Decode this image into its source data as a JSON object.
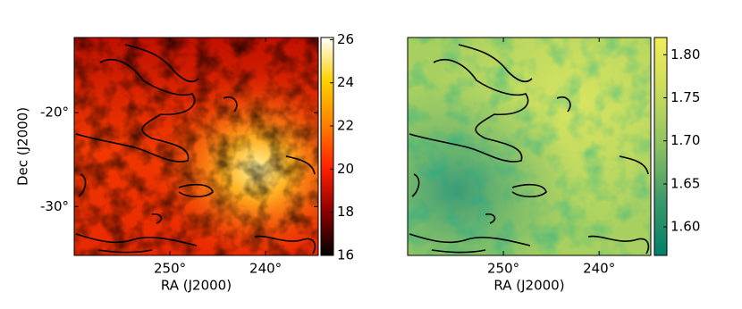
{
  "chart_data": [
    {
      "type": "heatmap",
      "xlabel": "RA (J2000)",
      "ylabel": "Dec (J2000)",
      "xlim": [
        260,
        234.5
      ],
      "xticks": [
        {
          "value": 250,
          "label": "250°"
        },
        {
          "value": 240,
          "label": "240°"
        }
      ],
      "ylim": [
        -35.2,
        -12
      ],
      "yticks": [
        {
          "value": -20,
          "label": "-20°"
        },
        {
          "value": -30,
          "label": "-30°"
        }
      ],
      "colormap": [
        "#000000",
        "#8b0000",
        "#ff2000",
        "#ff8000",
        "#ffd000",
        "#ffffff"
      ],
      "clim": [
        16,
        26.1
      ],
      "cticks": [
        16,
        18,
        20,
        22,
        24,
        26
      ]
    },
    {
      "type": "heatmap",
      "xlabel": "RA (J2000)",
      "xlim": [
        260,
        234.6
      ],
      "xticks": [
        {
          "value": 250,
          "label": "250°"
        },
        {
          "value": 240,
          "label": "240°"
        }
      ],
      "colormap": [
        "#00806a",
        "#3a9a6a",
        "#8cc062",
        "#c8dc5c",
        "#f2ec58"
      ],
      "clim": [
        1.567,
        1.82
      ],
      "cticks": [
        {
          "value": 1.6,
          "label": "1.60"
        },
        1.65,
        {
          "value": 1.7,
          "label": "1.70"
        },
        1.75,
        {
          "value": 1.8,
          "label": "1.80"
        }
      ]
    }
  ]
}
